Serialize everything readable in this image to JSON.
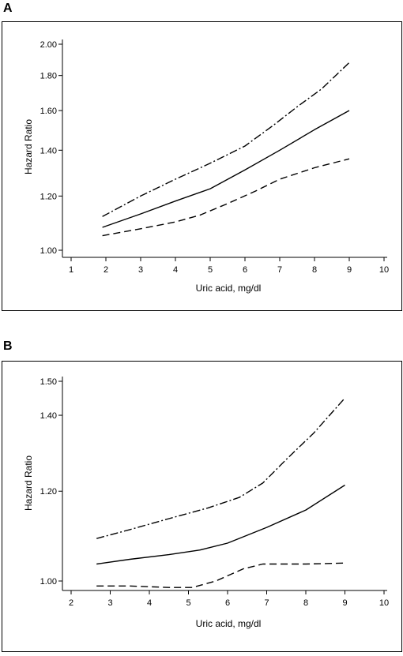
{
  "panels": [
    {
      "letter": "A"
    },
    {
      "letter": "B"
    }
  ],
  "chart_data": [
    {
      "type": "line",
      "title": "",
      "xlabel": "Uric acid, mg/dl",
      "ylabel": "Hazard Ratio",
      "xlim": [
        1,
        10
      ],
      "ylim": [
        1.0,
        2.0
      ],
      "yscale": "log",
      "xticks": [
        "1",
        "2",
        "3",
        "4",
        "5",
        "6",
        "7",
        "8",
        "9",
        "10"
      ],
      "yticks": [
        "1.00",
        "1.20",
        "1.40",
        "1.60",
        "1.80",
        "2.00"
      ],
      "yticks_values": [
        1.0,
        1.2,
        1.4,
        1.6,
        1.8,
        2.0
      ],
      "grid": false,
      "legend": "none",
      "series": [
        {
          "style": "dashed-dot",
          "x": [
            1.9,
            3,
            4,
            5,
            6,
            6.8,
            7.5,
            8.2,
            9
          ],
          "y": [
            1.12,
            1.2,
            1.27,
            1.34,
            1.42,
            1.52,
            1.62,
            1.72,
            1.88
          ]
        },
        {
          "style": "solid",
          "x": [
            1.9,
            3,
            4,
            5,
            6,
            7,
            8,
            9
          ],
          "y": [
            1.08,
            1.13,
            1.18,
            1.23,
            1.31,
            1.4,
            1.5,
            1.6
          ]
        },
        {
          "style": "dashed",
          "x": [
            1.9,
            3,
            4,
            4.7,
            5.5,
            6.3,
            7,
            8,
            9
          ],
          "y": [
            1.05,
            1.075,
            1.1,
            1.125,
            1.17,
            1.22,
            1.27,
            1.32,
            1.36
          ]
        }
      ]
    },
    {
      "type": "line",
      "title": "",
      "xlabel": "Uric acid, mg/dl",
      "ylabel": "Hazard Ratio",
      "xlim": [
        2,
        10
      ],
      "ylim": [
        0.98,
        1.5
      ],
      "yscale": "log",
      "xticks": [
        "2",
        "3",
        "4",
        "5",
        "6",
        "7",
        "8",
        "9",
        "10"
      ],
      "yticks": [
        "1.00",
        "1.20",
        "1.40",
        "1.50"
      ],
      "yticks_values": [
        1.0,
        1.2,
        1.4,
        1.5
      ],
      "grid": false,
      "legend": "none",
      "series": [
        {
          "style": "dashed-dot",
          "x": [
            2.65,
            3.5,
            4.5,
            5.5,
            6.3,
            6.9,
            7.5,
            8.2,
            9
          ],
          "y": [
            1.09,
            1.11,
            1.135,
            1.16,
            1.185,
            1.22,
            1.28,
            1.35,
            1.45
          ]
        },
        {
          "style": "solid",
          "x": [
            2.65,
            3.5,
            4.5,
            5.3,
            6,
            7,
            8,
            9
          ],
          "y": [
            1.035,
            1.045,
            1.055,
            1.065,
            1.08,
            1.115,
            1.155,
            1.215
          ]
        },
        {
          "style": "dashed",
          "x": [
            2.65,
            3.5,
            4.5,
            5.1,
            5.7,
            6.4,
            6.9,
            8,
            9
          ],
          "y": [
            0.99,
            0.99,
            0.987,
            0.987,
            1.0,
            1.025,
            1.035,
            1.035,
            1.037
          ]
        }
      ]
    }
  ]
}
